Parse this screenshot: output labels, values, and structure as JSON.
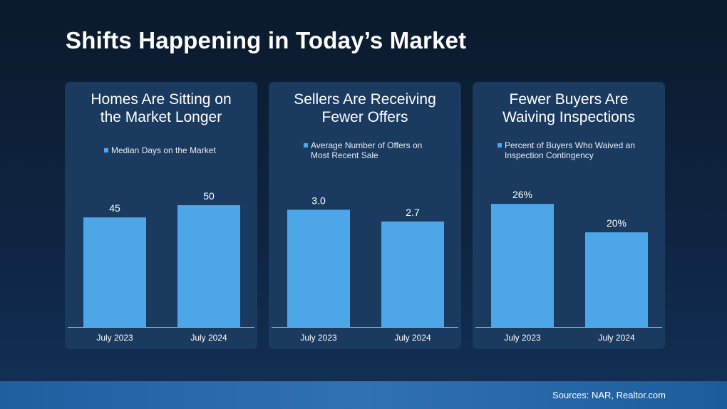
{
  "title": "Shifts Happening in Today’s Market",
  "source": "Sources: NAR, Realtor.com",
  "colors": {
    "bar": "#4da6e8",
    "panel": "#1a3a5f",
    "footer": "#2b6cad"
  },
  "chart_data": [
    {
      "type": "bar",
      "title_lines": [
        "Homes Are Sitting on",
        "the Market Longer"
      ],
      "legend": [
        "Median Days on the Market"
      ],
      "categories": [
        "July 2023",
        "July 2024"
      ],
      "values": [
        45,
        50
      ],
      "data_labels": [
        "45",
        "50"
      ],
      "ylim": [
        0,
        69
      ]
    },
    {
      "type": "bar",
      "title_lines": [
        "Sellers Are Receiving",
        "Fewer Offers"
      ],
      "legend": [
        "Average Number of Offers on",
        "Most Recent Sale"
      ],
      "categories": [
        "July 2023",
        "July 2024"
      ],
      "values": [
        3.0,
        2.7
      ],
      "data_labels": [
        "3.0",
        "2.7"
      ],
      "ylim": [
        0,
        4.3
      ]
    },
    {
      "type": "bar",
      "title_lines": [
        "Fewer Buyers Are",
        "Waiving Inspections"
      ],
      "legend": [
        "Percent of Buyers Who Waived an",
        "Inspection Contingency"
      ],
      "categories": [
        "July 2023",
        "July 2024"
      ],
      "values": [
        26,
        20
      ],
      "data_labels": [
        "26%",
        "20%"
      ],
      "ylim": [
        0,
        35.5
      ]
    }
  ]
}
